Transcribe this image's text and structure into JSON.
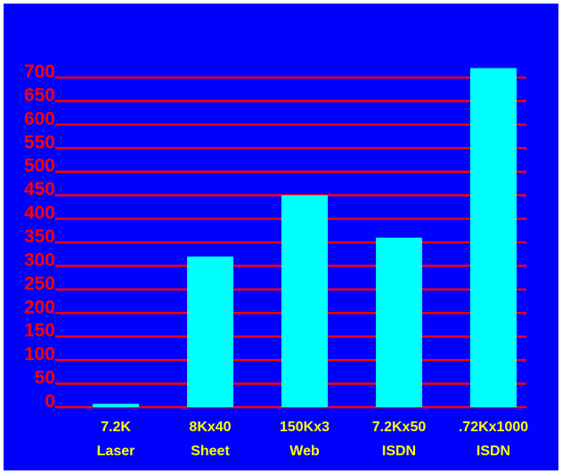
{
  "chart_data": {
    "type": "bar",
    "categories": [
      [
        "7.2K",
        "Laser"
      ],
      [
        "8Kx40",
        "Sheet"
      ],
      [
        "150Kx3",
        "Web"
      ],
      [
        "7.2Kx50",
        "ISDN"
      ],
      [
        ".72Kx1000",
        "ISDN"
      ]
    ],
    "values": [
      7.2,
      320,
      450,
      360,
      720
    ],
    "ylim": [
      0,
      700
    ],
    "yticks": [
      0,
      50,
      100,
      150,
      200,
      250,
      300,
      350,
      400,
      450,
      500,
      550,
      600,
      650,
      700
    ],
    "title": "",
    "xlabel": "",
    "ylabel": "",
    "grid": true,
    "colors": {
      "background": "#0000ff",
      "bars": "#00ffff",
      "gridlines": "#ff0000",
      "ytick_labels": "#ff0000",
      "xtick_labels": "#ffff00",
      "border": "#ffffff"
    }
  }
}
